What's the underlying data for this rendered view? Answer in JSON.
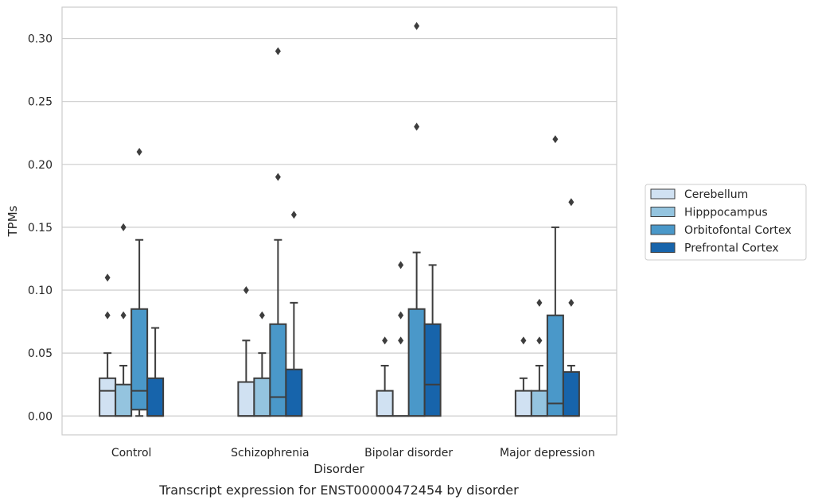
{
  "chart_data": {
    "type": "box",
    "title": "",
    "caption": "Transcript expression for ENST00000472454 by disorder",
    "xlabel": "Disorder",
    "ylabel": "TPMs",
    "ylim": [
      -0.015,
      0.325
    ],
    "yticks": [
      "0.00",
      "0.05",
      "0.10",
      "0.15",
      "0.20",
      "0.25",
      "0.30"
    ],
    "ytick_values": [
      0,
      0.05,
      0.1,
      0.15,
      0.2,
      0.25,
      0.3
    ],
    "grid": "horizontal",
    "legend_position": "right",
    "categories": [
      "Control",
      "Schizophrenia",
      "Bipolar disorder",
      "Major depression"
    ],
    "series": [
      {
        "name": "Cerebellum",
        "color": "#d0e1f2",
        "boxes": [
          {
            "q1": 0,
            "median": 0.02,
            "q3": 0.03,
            "whisker_low": 0,
            "whisker_high": 0.05,
            "outliers": [
              0.08,
              0.11
            ]
          },
          {
            "q1": 0,
            "median": 0,
            "q3": 0.027,
            "whisker_low": 0,
            "whisker_high": 0.06,
            "outliers": [
              0.1
            ]
          },
          {
            "q1": 0,
            "median": 0,
            "q3": 0.02,
            "whisker_low": 0,
            "whisker_high": 0.04,
            "outliers": [
              0.06
            ]
          },
          {
            "q1": 0,
            "median": 0,
            "q3": 0.02,
            "whisker_low": 0,
            "whisker_high": 0.03,
            "outliers": [
              0.06
            ]
          }
        ]
      },
      {
        "name": "Hipppocampus",
        "color": "#94c4df",
        "boxes": [
          {
            "q1": 0,
            "median": 0,
            "q3": 0.025,
            "whisker_low": 0,
            "whisker_high": 0.04,
            "outliers": [
              0.08,
              0.15
            ]
          },
          {
            "q1": 0,
            "median": 0,
            "q3": 0.03,
            "whisker_low": 0,
            "whisker_high": 0.05,
            "outliers": [
              0.08
            ]
          },
          {
            "q1": 0,
            "median": 0,
            "q3": 0,
            "whisker_low": 0,
            "whisker_high": 0,
            "outliers": [
              0.06,
              0.08,
              0.12
            ]
          },
          {
            "q1": 0,
            "median": 0,
            "q3": 0.02,
            "whisker_low": 0,
            "whisker_high": 0.04,
            "outliers": [
              0.06,
              0.09
            ]
          }
        ]
      },
      {
        "name": "Orbitofontal Cortex",
        "color": "#4a98c9",
        "boxes": [
          {
            "q1": 0.005,
            "median": 0.02,
            "q3": 0.085,
            "whisker_low": 0,
            "whisker_high": 0.14,
            "outliers": [
              0.21
            ]
          },
          {
            "q1": 0,
            "median": 0.015,
            "q3": 0.073,
            "whisker_low": 0,
            "whisker_high": 0.14,
            "outliers": [
              0.19,
              0.29
            ]
          },
          {
            "q1": 0,
            "median": 0,
            "q3": 0.085,
            "whisker_low": 0,
            "whisker_high": 0.13,
            "outliers": [
              0.23,
              0.31
            ]
          },
          {
            "q1": 0,
            "median": 0.01,
            "q3": 0.08,
            "whisker_low": 0,
            "whisker_high": 0.15,
            "outliers": [
              0.22
            ]
          }
        ]
      },
      {
        "name": "Prefrontal Cortex",
        "color": "#1764ab",
        "boxes": [
          {
            "q1": 0,
            "median": 0,
            "q3": 0.03,
            "whisker_low": 0,
            "whisker_high": 0.07,
            "outliers": []
          },
          {
            "q1": 0,
            "median": 0,
            "q3": 0.037,
            "whisker_low": 0,
            "whisker_high": 0.09,
            "outliers": [
              0.16
            ]
          },
          {
            "q1": 0,
            "median": 0.025,
            "q3": 0.073,
            "whisker_low": 0,
            "whisker_high": 0.12,
            "outliers": []
          },
          {
            "q1": 0,
            "median": 0,
            "q3": 0.035,
            "whisker_low": 0,
            "whisker_high": 0.04,
            "outliers": [
              0.09,
              0.17
            ]
          }
        ]
      }
    ]
  }
}
